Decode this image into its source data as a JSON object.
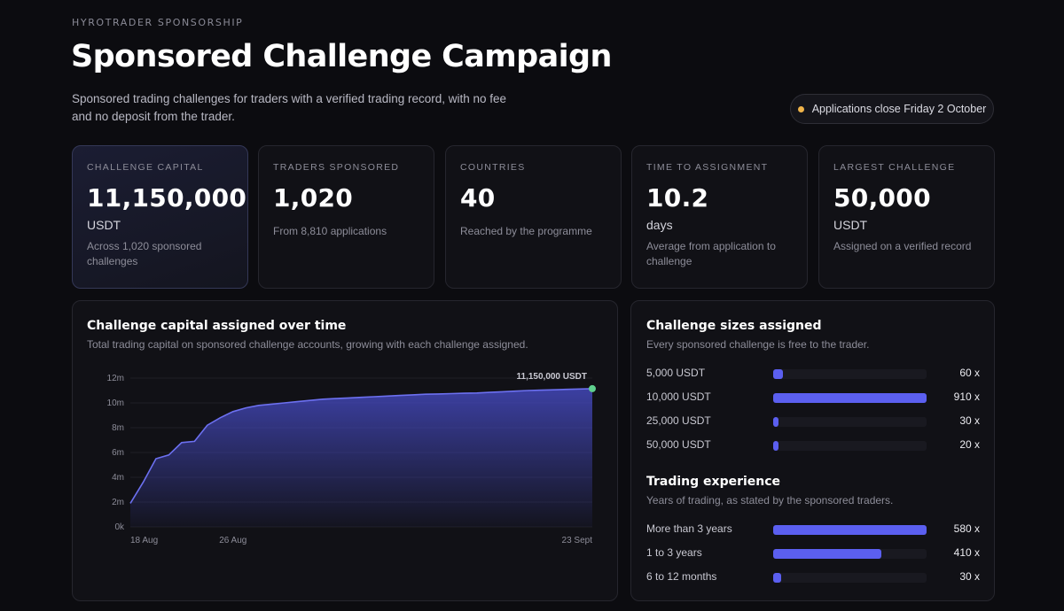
{
  "header": {
    "eyebrow": "HYROTRADER SPONSORSHIP",
    "title": "Sponsored Challenge Campaign",
    "subtitle": "Sponsored trading challenges for traders with a verified trading record, with no fee and no deposit from the trader.",
    "notice": "Applications close Friday 2 October",
    "notice_color": "#f0b44a"
  },
  "stats": [
    {
      "label": "CHALLENGE CAPITAL",
      "value": "11,150,000",
      "unit": "USDT",
      "note": "Across 1,020 sponsored challenges"
    },
    {
      "label": "TRADERS SPONSORED",
      "value": "1,020",
      "unit": "",
      "note": "From 8,810 applications"
    },
    {
      "label": "COUNTRIES",
      "value": "40",
      "unit": "",
      "note": "Reached by the programme"
    },
    {
      "label": "TIME TO ASSIGNMENT",
      "value": "10.2",
      "unit": "days",
      "note": "Average from application to challenge"
    },
    {
      "label": "LARGEST CHALLENGE",
      "value": "50,000",
      "unit": "USDT",
      "note": "Assigned on a verified record"
    }
  ],
  "capital_chart": {
    "title": "Challenge capital assigned over time",
    "description": "Total trading capital on sponsored challenge accounts, growing with each challenge assigned.",
    "end_label": "11,150,000 USDT"
  },
  "chart_data": {
    "type": "area",
    "title": "Challenge capital assigned over time",
    "x": [
      "18 Aug",
      "19 Aug",
      "20 Aug",
      "21 Aug",
      "22 Aug",
      "23 Aug",
      "24 Aug",
      "25 Aug",
      "26 Aug",
      "27 Aug",
      "28 Aug",
      "29 Aug",
      "30 Aug",
      "31 Aug",
      "1 Sept",
      "2 Sept",
      "3 Sept",
      "4 Sept",
      "5 Sept",
      "6 Sept",
      "7 Sept",
      "8 Sept",
      "9 Sept",
      "10 Sept",
      "11 Sept",
      "12 Sept",
      "13 Sept",
      "14 Sept",
      "15 Sept",
      "16 Sept",
      "17 Sept",
      "18 Sept",
      "19 Sept",
      "20 Sept",
      "21 Sept",
      "22 Sept",
      "23 Sept"
    ],
    "x_ticks": [
      "18 Aug",
      "26 Aug",
      "23 Sept"
    ],
    "series": [
      {
        "values": [
          1.9,
          3.6,
          5.5,
          5.8,
          6.8,
          6.9,
          8.2,
          8.8,
          9.3,
          9.6,
          9.8,
          9.9,
          10.0,
          10.1,
          10.2,
          10.3,
          10.35,
          10.4,
          10.45,
          10.5,
          10.55,
          10.6,
          10.65,
          10.7,
          10.72,
          10.75,
          10.78,
          10.8,
          10.85,
          10.9,
          10.95,
          11.0,
          11.03,
          11.06,
          11.09,
          11.12,
          11.15
        ]
      }
    ],
    "y_ticks": [
      "0k",
      "2m",
      "4m",
      "6m",
      "8m",
      "10m",
      "12m"
    ],
    "ylim": [
      0,
      12
    ],
    "grid": true,
    "accent": "#6c70f0",
    "end_dot_color": "#5fd08e"
  },
  "sizes": {
    "title": "Challenge sizes assigned",
    "description": "Every sponsored challenge is free to the trader.",
    "max": 910,
    "rows": [
      {
        "label": "5,000 USDT",
        "value": 60,
        "count": "60 x"
      },
      {
        "label": "10,000 USDT",
        "value": 910,
        "count": "910 x"
      },
      {
        "label": "25,000 USDT",
        "value": 30,
        "count": "30 x"
      },
      {
        "label": "50,000 USDT",
        "value": 20,
        "count": "20 x"
      }
    ]
  },
  "experience": {
    "title": "Trading experience",
    "description": "Years of trading, as stated by the sponsored traders.",
    "max": 580,
    "rows": [
      {
        "label": "More than 3 years",
        "value": 580,
        "count": "580 x"
      },
      {
        "label": "1 to 3 years",
        "value": 410,
        "count": "410 x"
      },
      {
        "label": "6 to 12 months",
        "value": 30,
        "count": "30 x"
      }
    ]
  }
}
